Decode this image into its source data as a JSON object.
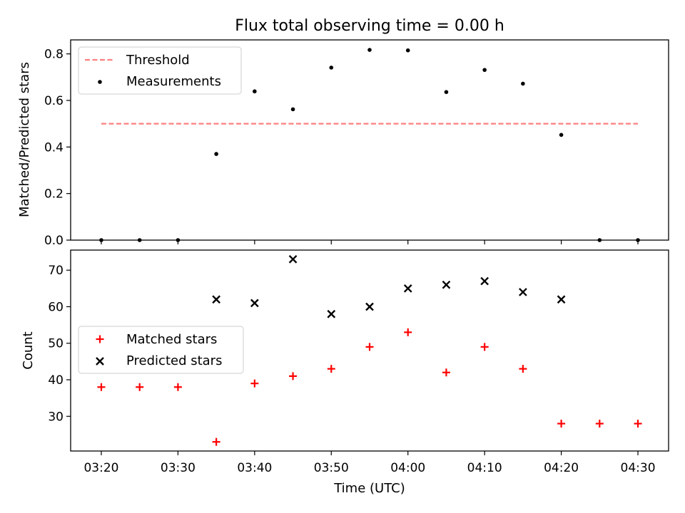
{
  "title": "Flux total observing time = 0.00 h",
  "colors": {
    "threshold": "#ff7f7f",
    "measurement": "#000000",
    "matched": "#ff0000",
    "predicted": "#000000"
  },
  "chart_data": [
    {
      "type": "scatter",
      "title": "Flux total observing time = 0.00 h",
      "xlabel": "",
      "ylabel": "Matched/Predicted stars",
      "xlim": [
        "03:16",
        "04:34"
      ],
      "ylim": [
        0,
        0.86
      ],
      "yticks": [
        0,
        0.2,
        0.4,
        0.6,
        0.8
      ],
      "yticklabels": [
        "0.0",
        "0.2",
        "0.4",
        "0.6",
        "0.8"
      ],
      "legend": {
        "position": "top-left",
        "entries": [
          "Threshold",
          "Measurements"
        ]
      },
      "series": [
        {
          "name": "Threshold",
          "style": "dashed-line",
          "x": [
            "03:20",
            "04:30"
          ],
          "y": [
            0.5,
            0.5
          ]
        },
        {
          "name": "Measurements",
          "style": "dot",
          "x": [
            "03:20",
            "03:25",
            "03:30",
            "03:35",
            "03:40",
            "03:45",
            "03:50",
            "03:55",
            "04:00",
            "04:05",
            "04:10",
            "04:15",
            "04:20",
            "04:25",
            "04:30"
          ],
          "y": [
            0.0,
            0.0,
            0.0,
            0.37,
            0.639,
            0.562,
            0.741,
            0.817,
            0.815,
            0.636,
            0.731,
            0.672,
            0.452,
            0.0,
            0.0
          ]
        }
      ]
    },
    {
      "type": "scatter",
      "title": "",
      "xlabel": "Time (UTC)",
      "ylabel": "Count",
      "xlim": [
        "03:16",
        "04:34"
      ],
      "ylim": [
        20.5,
        75.5
      ],
      "yticks": [
        30,
        40,
        50,
        60,
        70
      ],
      "yticklabels": [
        "30",
        "40",
        "50",
        "60",
        "70"
      ],
      "xticks": [
        "03:20",
        "03:30",
        "03:40",
        "03:50",
        "04:00",
        "04:10",
        "04:20",
        "04:30"
      ],
      "legend": {
        "position": "center-left",
        "entries": [
          "Matched stars",
          "Predicted stars"
        ]
      },
      "series": [
        {
          "name": "Matched stars",
          "marker": "plus",
          "x": [
            "03:20",
            "03:25",
            "03:30",
            "03:35",
            "03:40",
            "03:45",
            "03:50",
            "03:55",
            "04:00",
            "04:05",
            "04:10",
            "04:15",
            "04:20",
            "04:25",
            "04:30"
          ],
          "y": [
            38,
            38,
            38,
            23,
            39,
            41,
            43,
            49,
            53,
            42,
            49,
            43,
            28,
            28,
            28
          ]
        },
        {
          "name": "Predicted stars",
          "marker": "x",
          "x": [
            "03:35",
            "03:40",
            "03:45",
            "03:50",
            "03:55",
            "04:00",
            "04:05",
            "04:10",
            "04:15",
            "04:20"
          ],
          "y": [
            62,
            61,
            73,
            58,
            60,
            65,
            66,
            67,
            64,
            62
          ]
        }
      ]
    }
  ]
}
